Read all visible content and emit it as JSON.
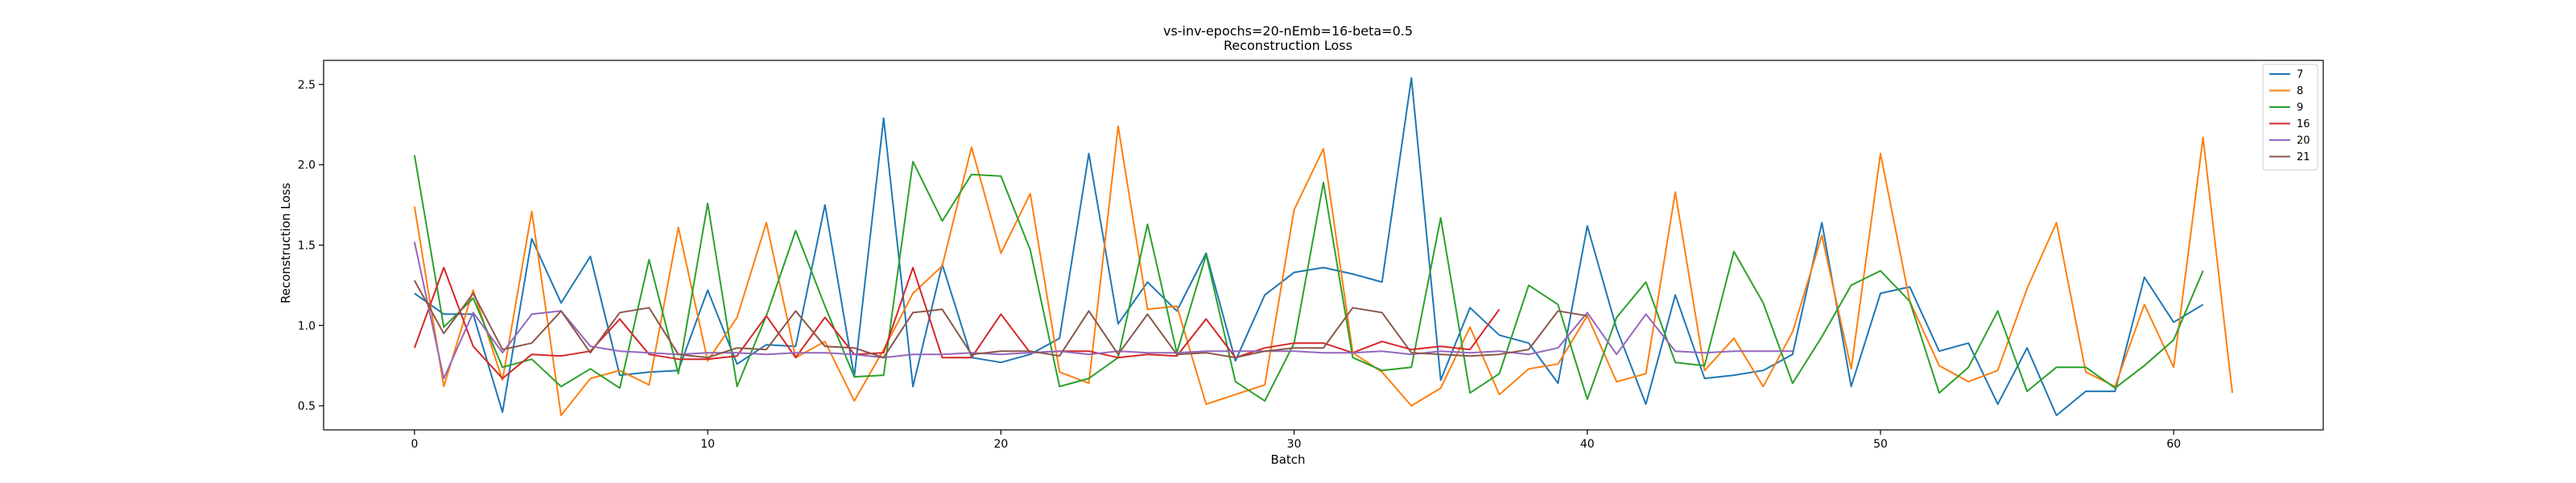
{
  "chart_data": {
    "type": "line",
    "title": "vs-inv-epochs=20-nEmb=16-beta=0.5",
    "subtitle": "Reconstruction Loss",
    "xlabel": "Batch",
    "ylabel": "Reconstruction Loss",
    "xlim": [
      -3.1,
      65.1
    ],
    "ylim": [
      0.35,
      2.65
    ],
    "xticks": [
      0,
      10,
      20,
      30,
      40,
      50,
      60
    ],
    "yticks": [
      0.5,
      1.0,
      1.5,
      2.0,
      2.5
    ],
    "ytick_labels": [
      "0.5",
      "1.0",
      "1.5",
      "2.0",
      "2.5"
    ],
    "grid": false,
    "legend_position": "top-right",
    "series": [
      {
        "name": "7",
        "color": "#1f77b4",
        "values": [
          1.2,
          1.07,
          1.07,
          0.46,
          1.54,
          1.14,
          1.43,
          0.69,
          0.71,
          0.72,
          1.22,
          0.76,
          0.88,
          0.87,
          1.75,
          0.68,
          2.29,
          0.62,
          1.38,
          0.8,
          0.77,
          0.82,
          0.92,
          2.07,
          1.01,
          1.27,
          1.09,
          1.45,
          0.78,
          1.19,
          1.33,
          1.36,
          1.32,
          1.27,
          2.54,
          0.66,
          1.11,
          0.94,
          0.89,
          0.64,
          1.62,
          0.98,
          0.51,
          1.19,
          0.67,
          0.69,
          0.72,
          0.82,
          1.64,
          0.62,
          1.2,
          1.24,
          0.84,
          0.89,
          0.51,
          0.86,
          0.44,
          0.59,
          0.59,
          1.3,
          1.02,
          1.13
        ]
      },
      {
        "name": "8",
        "color": "#ff7f0e",
        "values": [
          1.74,
          0.62,
          1.22,
          0.66,
          1.71,
          0.44,
          0.67,
          0.72,
          0.63,
          1.61,
          0.78,
          1.05,
          1.64,
          0.8,
          0.9,
          0.53,
          0.85,
          1.2,
          1.37,
          2.11,
          1.45,
          1.82,
          0.71,
          0.64,
          2.24,
          1.1,
          1.12,
          0.51,
          0.57,
          0.63,
          1.72,
          2.1,
          0.83,
          0.71,
          0.5,
          0.61,
          0.99,
          0.57,
          0.73,
          0.76,
          1.06,
          0.65,
          0.7,
          1.83,
          0.72,
          0.92,
          0.62,
          0.96,
          1.56,
          0.73,
          2.07,
          1.15,
          0.75,
          0.65,
          0.72,
          1.23,
          1.64,
          0.71,
          0.62,
          1.13,
          0.74,
          2.17,
          0.58
        ]
      },
      {
        "name": "9",
        "color": "#2ca02c",
        "values": [
          2.06,
          0.99,
          1.17,
          0.74,
          0.79,
          0.62,
          0.73,
          0.61,
          1.41,
          0.7,
          1.76,
          0.62,
          1.06,
          1.59,
          1.12,
          0.68,
          0.69,
          2.02,
          1.65,
          1.94,
          1.93,
          1.47,
          0.62,
          0.67,
          0.8,
          1.63,
          0.83,
          1.44,
          0.65,
          0.53,
          0.89,
          1.89,
          0.8,
          0.72,
          0.74,
          1.67,
          0.58,
          0.7,
          1.25,
          1.13,
          0.54,
          1.05,
          1.27,
          0.77,
          0.75,
          1.46,
          1.14,
          0.64,
          0.93,
          1.25,
          1.34,
          1.15,
          0.58,
          0.74,
          1.09,
          0.59,
          0.74,
          0.74,
          0.61,
          0.75,
          0.91,
          1.34
        ]
      },
      {
        "name": "16",
        "color": "#d62728",
        "values": [
          0.86,
          1.36,
          0.87,
          0.67,
          0.82,
          0.81,
          0.84,
          1.04,
          0.82,
          0.79,
          0.79,
          0.81,
          1.06,
          0.8,
          1.05,
          0.82,
          0.83,
          1.36,
          0.8,
          0.8,
          1.07,
          0.83,
          0.84,
          0.84,
          0.8,
          0.82,
          0.81,
          1.04,
          0.8,
          0.86,
          0.89,
          0.89,
          0.83,
          0.9,
          0.85,
          0.87,
          0.85,
          1.1
        ]
      },
      {
        "name": "20",
        "color": "#9467bd",
        "values": [
          1.52,
          0.67,
          1.08,
          0.83,
          1.07,
          1.09,
          0.87,
          0.84,
          0.83,
          0.82,
          0.83,
          0.83,
          0.82,
          0.83,
          0.83,
          0.82,
          0.8,
          0.82,
          0.82,
          0.83,
          0.82,
          0.83,
          0.84,
          0.82,
          0.84,
          0.83,
          0.83,
          0.84,
          0.84,
          0.84,
          0.84,
          0.83,
          0.83,
          0.84,
          0.82,
          0.84,
          0.83,
          0.84,
          0.82,
          0.86,
          1.08,
          0.82,
          1.07,
          0.84,
          0.83,
          0.84,
          0.84,
          0.84
        ]
      },
      {
        "name": "21",
        "color": "#8c564b",
        "values": [
          1.28,
          0.95,
          1.2,
          0.85,
          0.89,
          1.09,
          0.83,
          1.08,
          1.11,
          0.82,
          0.8,
          0.86,
          0.85,
          1.09,
          0.87,
          0.86,
          0.8,
          1.08,
          1.1,
          0.82,
          0.84,
          0.84,
          0.81,
          1.09,
          0.82,
          1.07,
          0.82,
          0.83,
          0.8,
          0.84,
          0.86,
          0.86,
          1.11,
          1.08,
          0.83,
          0.82,
          0.81,
          0.82,
          0.85,
          1.09,
          1.06
        ]
      }
    ]
  }
}
